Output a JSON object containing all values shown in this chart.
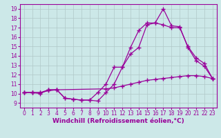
{
  "xlabel": "Windchill (Refroidissement éolien,°C)",
  "ylabel": "",
  "xlim": [
    -0.5,
    23.5
  ],
  "ylim": [
    8.5,
    19.5
  ],
  "yticks": [
    9,
    10,
    11,
    12,
    13,
    14,
    15,
    16,
    17,
    18,
    19
  ],
  "xticks": [
    0,
    1,
    2,
    3,
    4,
    5,
    6,
    7,
    8,
    9,
    10,
    11,
    12,
    13,
    14,
    15,
    16,
    17,
    18,
    19,
    20,
    21,
    22,
    23
  ],
  "bg_color": "#cce8e8",
  "grid_color": "#b0c8c8",
  "line_color": "#990099",
  "line1_x": [
    0,
    1,
    2,
    3,
    4,
    10,
    11,
    12,
    13,
    14,
    15,
    16,
    17,
    18,
    19,
    20,
    21,
    22,
    23
  ],
  "line1_y": [
    10.1,
    10.1,
    10.1,
    10.3,
    10.4,
    10.5,
    10.6,
    10.8,
    11.0,
    11.2,
    11.4,
    11.5,
    11.6,
    11.7,
    11.8,
    11.9,
    11.9,
    11.8,
    11.6
  ],
  "line2_x": [
    0,
    1,
    2,
    3,
    4,
    5,
    6,
    7,
    8,
    9,
    10,
    11,
    12,
    13,
    14,
    15,
    16,
    17,
    18,
    19,
    20,
    21,
    22,
    23
  ],
  "line2_y": [
    10.1,
    10.1,
    10.0,
    10.4,
    10.4,
    9.5,
    9.4,
    9.3,
    9.3,
    9.2,
    10.1,
    11.0,
    12.8,
    14.2,
    14.9,
    17.3,
    17.5,
    17.3,
    17.0,
    17.0,
    15.0,
    13.8,
    13.2,
    11.6
  ],
  "line3_x": [
    0,
    1,
    2,
    3,
    4,
    5,
    6,
    7,
    8,
    9,
    10,
    11,
    12,
    13,
    14,
    15,
    16,
    17,
    18,
    19,
    20,
    21,
    22,
    23
  ],
  "line3_y": [
    10.1,
    10.1,
    10.1,
    10.4,
    10.4,
    9.5,
    9.4,
    9.3,
    9.3,
    10.1,
    11.0,
    12.8,
    12.8,
    14.9,
    16.7,
    17.5,
    17.5,
    19.0,
    17.2,
    17.1,
    14.9,
    13.5,
    12.9,
    11.6
  ],
  "marker": "+",
  "markersize": 4,
  "linewidth": 0.9,
  "tick_fontsize": 5.5,
  "label_fontsize": 6.5
}
